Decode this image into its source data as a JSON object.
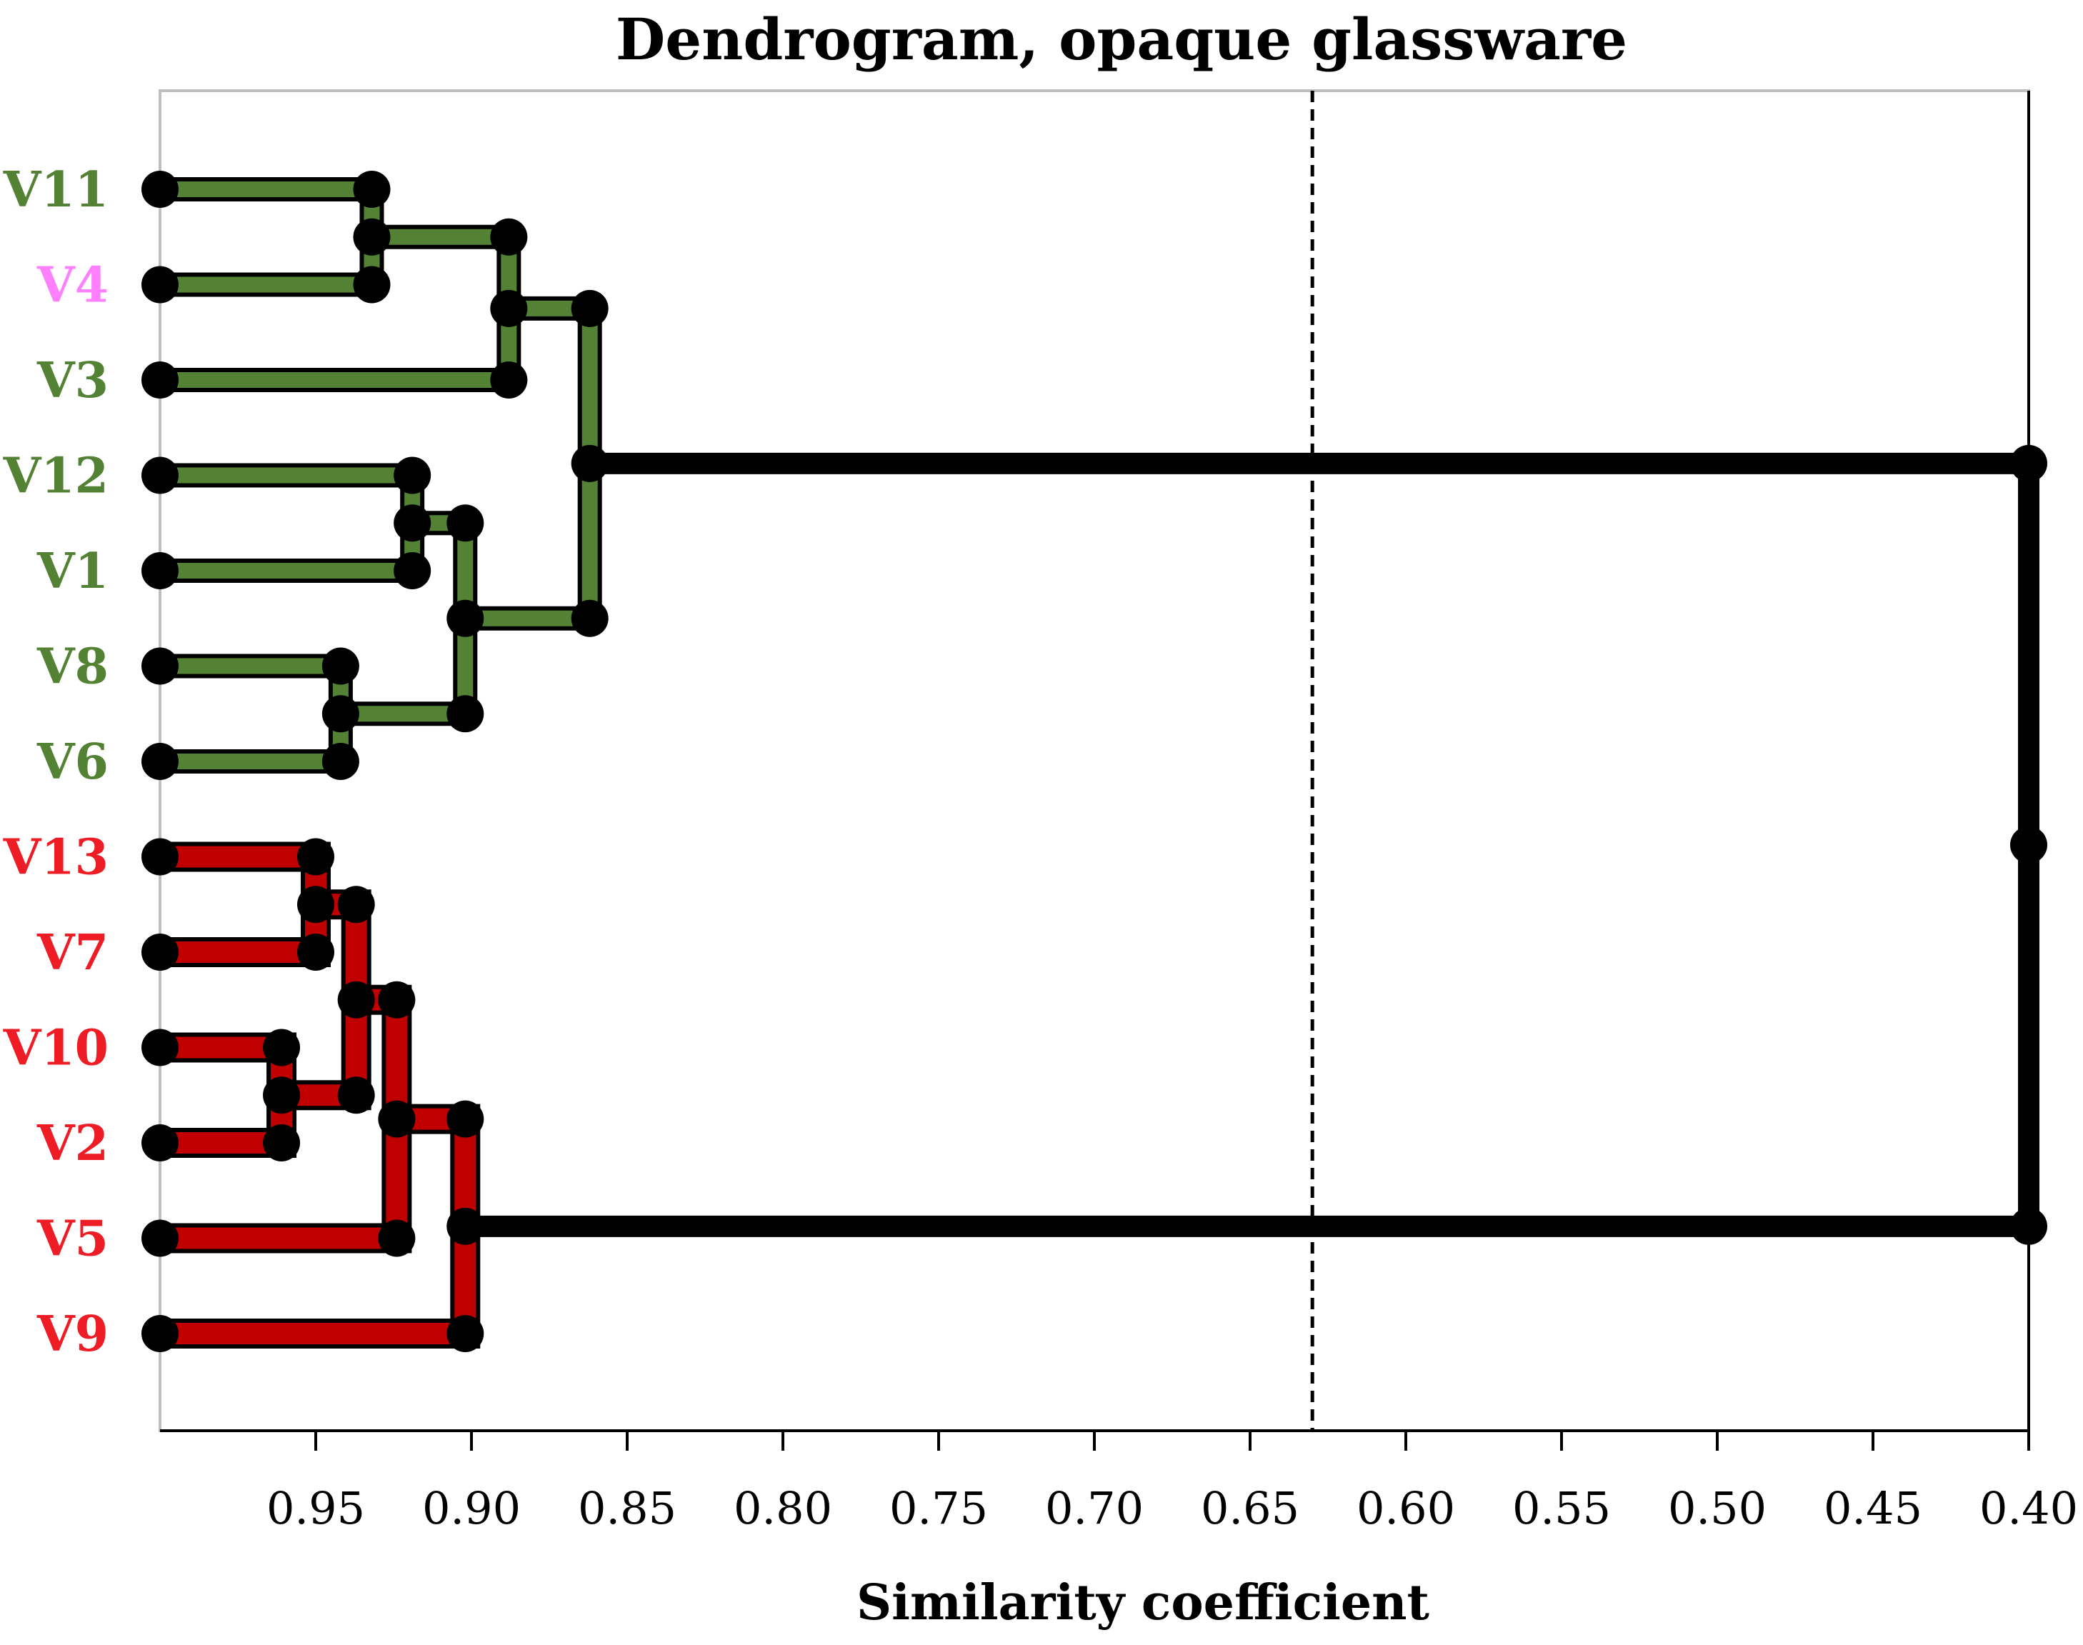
{
  "chart_data": {
    "type": "dendrogram",
    "title": "Dendrogram, opaque glassware",
    "xlabel": "Similarity coefficient",
    "xlim": [
      1.0,
      0.4
    ],
    "xticks": [
      "0.95",
      "0.90",
      "0.85",
      "0.80",
      "0.75",
      "0.70",
      "0.65",
      "0.60",
      "0.55",
      "0.50",
      "0.45",
      "0.40"
    ],
    "cutoff": 0.63,
    "grid": false,
    "leaves": [
      {
        "label": "V11",
        "color": "#548235"
      },
      {
        "label": "V4",
        "color": "#ff80ff"
      },
      {
        "label": "V3",
        "color": "#548235"
      },
      {
        "label": "V12",
        "color": "#548235"
      },
      {
        "label": "V1",
        "color": "#548235"
      },
      {
        "label": "V8",
        "color": "#548235"
      },
      {
        "label": "V6",
        "color": "#548235"
      },
      {
        "label": "V13",
        "color": "#ee1c25"
      },
      {
        "label": "V7",
        "color": "#ee1c25"
      },
      {
        "label": "V10",
        "color": "#ee1c25"
      },
      {
        "label": "V2",
        "color": "#ee1c25"
      },
      {
        "label": "V5",
        "color": "#ee1c25"
      },
      {
        "label": "V9",
        "color": "#ee1c25"
      }
    ],
    "merges": [
      {
        "left": "V11",
        "right": "V4",
        "similarity": 0.932,
        "cluster": "green"
      },
      {
        "left": "m0",
        "right": "V3",
        "similarity": 0.888,
        "cluster": "green"
      },
      {
        "left": "V12",
        "right": "V1",
        "similarity": 0.919,
        "cluster": "green"
      },
      {
        "left": "V8",
        "right": "V6",
        "similarity": 0.942,
        "cluster": "green"
      },
      {
        "left": "m2",
        "right": "m3",
        "similarity": 0.902,
        "cluster": "green"
      },
      {
        "left": "m1",
        "right": "m4",
        "similarity": 0.862,
        "cluster": "green"
      },
      {
        "left": "V13",
        "right": "V7",
        "similarity": 0.95,
        "cluster": "red"
      },
      {
        "left": "V10",
        "right": "V2",
        "similarity": 0.961,
        "cluster": "red"
      },
      {
        "left": "m6",
        "right": "m7",
        "similarity": 0.937,
        "cluster": "red"
      },
      {
        "left": "m8",
        "right": "V5",
        "similarity": 0.924,
        "cluster": "red"
      },
      {
        "left": "m9",
        "right": "V9",
        "similarity": 0.902,
        "cluster": "red"
      },
      {
        "left": "m5",
        "right": "m10",
        "similarity": 0.4,
        "cluster": "root"
      }
    ],
    "cluster_colors": {
      "green": "#548235",
      "red": "#c00000",
      "root": "#000000"
    }
  }
}
